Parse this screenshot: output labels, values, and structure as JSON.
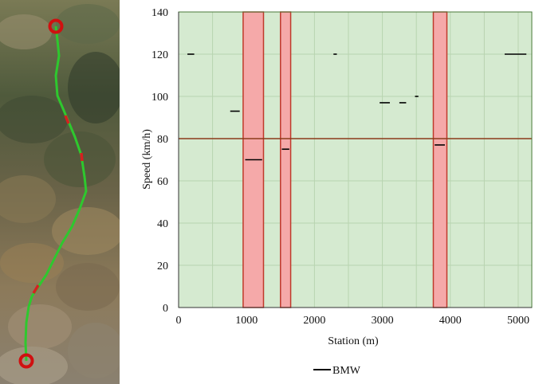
{
  "chart_data": {
    "type": "line",
    "title": "",
    "xlabel": "Station (m)",
    "ylabel": "Speed (km/h)",
    "xlim": [
      0,
      5200
    ],
    "ylim": [
      0,
      140
    ],
    "x_ticks": [
      0,
      1000,
      2000,
      3000,
      4000,
      5000
    ],
    "y_ticks": [
      0,
      20,
      40,
      60,
      80,
      100,
      120,
      140
    ],
    "x_tick_labels": [
      "0",
      "1000",
      "2000",
      "3000",
      "4000",
      "5000"
    ],
    "y_tick_labels": [
      "0",
      "20",
      "40",
      "60",
      "80",
      "100",
      "120",
      "140"
    ],
    "grid": true,
    "legend_position": "bottom",
    "background_color": "#d5ead0",
    "grid_color": "#b8d4b0",
    "speed_limit_color": "#8b3a1a",
    "zone_fill_color": "#f5a9a9",
    "zone_edge_color": "#c0392b",
    "speed_limit": 80,
    "highlight_zones": [
      [
        950,
        1250
      ],
      [
        1500,
        1650
      ],
      [
        3750,
        3950
      ]
    ],
    "series": [
      {
        "name": "BMW",
        "color": "#000000",
        "segments": [
          {
            "x": [
              130,
              230
            ],
            "y": [
              120,
              120
            ]
          },
          {
            "x": [
              760,
              900
            ],
            "y": [
              93,
              93
            ]
          },
          {
            "x": [
              980,
              1230
            ],
            "y": [
              70,
              70
            ]
          },
          {
            "x": [
              1520,
              1630
            ],
            "y": [
              75,
              75
            ]
          },
          {
            "x": [
              2280,
              2330
            ],
            "y": [
              120,
              120
            ]
          },
          {
            "x": [
              2960,
              3110
            ],
            "y": [
              97,
              97
            ]
          },
          {
            "x": [
              3250,
              3350
            ],
            "y": [
              97,
              97
            ]
          },
          {
            "x": [
              3480,
              3530
            ],
            "y": [
              100,
              100
            ]
          },
          {
            "x": [
              3770,
              3920
            ],
            "y": [
              77,
              77
            ]
          },
          {
            "x": [
              4800,
              5120
            ],
            "y": [
              120,
              120
            ]
          }
        ]
      }
    ]
  },
  "map": {
    "colors": {
      "route": "#2ec82e",
      "route_alert": "#d62020",
      "marker": "#d01010"
    }
  }
}
